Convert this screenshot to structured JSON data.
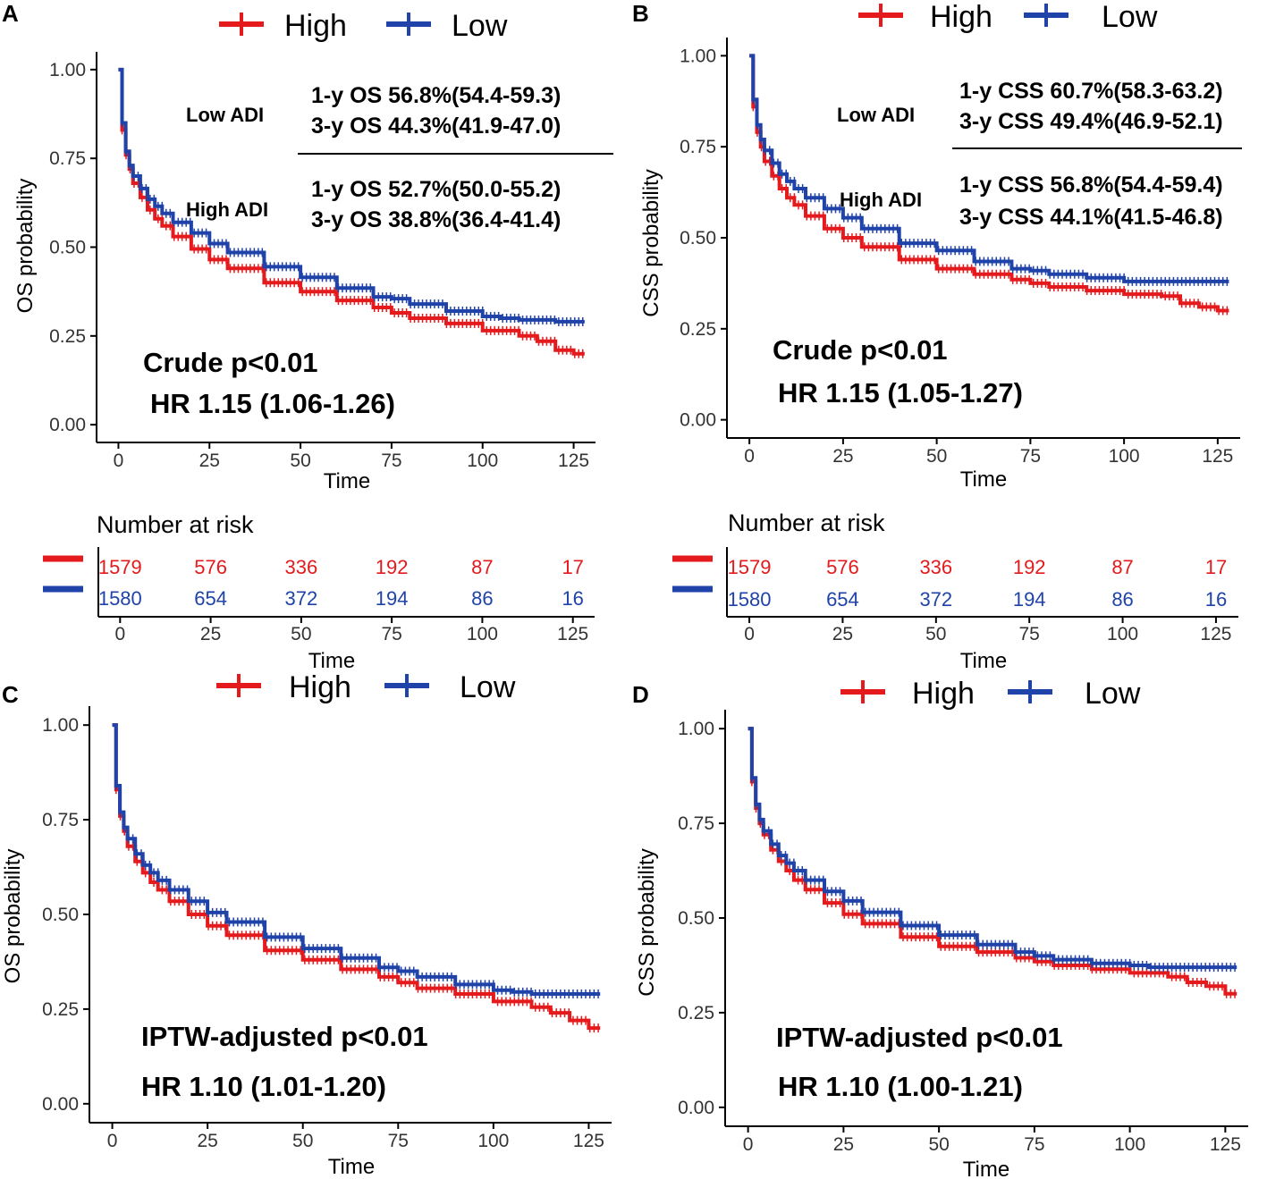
{
  "colors": {
    "high": "#e41a1c",
    "low": "#1f43a8",
    "axis": "#000000",
    "tick_label": "#333333"
  },
  "legend": {
    "high": "High",
    "low": "Low"
  },
  "panels": {
    "A": {
      "letter": "A",
      "ylabel": "OS probability",
      "xlabel": "Time",
      "xticks": [
        "0",
        "25",
        "50",
        "75",
        "100",
        "125"
      ],
      "yticks": [
        "0.00",
        "0.25",
        "0.50",
        "0.75",
        "1.00"
      ],
      "low_label": "Low  ADI",
      "high_label": "High ADI",
      "low_lines": [
        "1-y OS 56.8%(54.4-59.3)",
        "3-y OS 44.3%(41.9-47.0)"
      ],
      "high_lines": [
        "1-y OS 52.7%(50.0-55.2)",
        "3-y OS 38.8%(36.4-41.4)"
      ],
      "stat1": "Crude p<0.01",
      "stat2": "HR 1.15 (1.06-1.26)"
    },
    "B": {
      "letter": "B",
      "ylabel": "CSS probability",
      "xlabel": "Time",
      "xticks": [
        "0",
        "25",
        "50",
        "75",
        "100",
        "125"
      ],
      "yticks": [
        "0.00",
        "0.25",
        "0.50",
        "0.75",
        "1.00"
      ],
      "low_label": "Low  ADI",
      "high_label": "High ADI",
      "low_lines": [
        "1-y CSS 60.7%(58.3-63.2)",
        "3-y CSS 49.4%(46.9-52.1)"
      ],
      "high_lines": [
        "1-y CSS 56.8%(54.4-59.4)",
        "3-y CSS 44.1%(41.5-46.8)"
      ],
      "stat1": "Crude p<0.01",
      "stat2": "HR 1.15 (1.05-1.27)"
    },
    "C": {
      "letter": "C",
      "ylabel": "OS probability",
      "xlabel": "Time",
      "xticks": [
        "0",
        "25",
        "50",
        "75",
        "100",
        "125"
      ],
      "yticks": [
        "0.00",
        "0.25",
        "0.50",
        "0.75",
        "1.00"
      ],
      "stat1": "IPTW-adjusted p<0.01",
      "stat2": "HR 1.10 (1.01-1.20)"
    },
    "D": {
      "letter": "D",
      "ylabel": "CSS probability",
      "xlabel": "Time",
      "xticks": [
        "0",
        "25",
        "50",
        "75",
        "100",
        "125"
      ],
      "yticks": [
        "0.00",
        "0.25",
        "0.50",
        "0.75",
        "1.00"
      ],
      "stat1": "IPTW-adjusted p<0.01",
      "stat2": "HR 1.10 (1.00-1.21)"
    }
  },
  "risk_tables": {
    "title": "Number at risk",
    "xlabel": "Time",
    "xticks": [
      "0",
      "25",
      "50",
      "75",
      "100",
      "125"
    ],
    "high": [
      "1579",
      "576",
      "336",
      "192",
      "87",
      "17"
    ],
    "low": [
      "1580",
      "654",
      "372",
      "194",
      "86",
      "16"
    ]
  },
  "chart_data": [
    {
      "panel": "A",
      "type": "line",
      "title": "",
      "xlabel": "Time",
      "ylabel": "OS probability",
      "xlim": [
        -6,
        131
      ],
      "ylim": [
        -0.05,
        1.05
      ],
      "legend": [
        "High",
        "Low"
      ],
      "series": [
        {
          "name": "High",
          "x": [
            0,
            1,
            2,
            3,
            4,
            6,
            8,
            10,
            12,
            15,
            20,
            25,
            30,
            40,
            50,
            60,
            70,
            75,
            80,
            90,
            100,
            110,
            115,
            120,
            125,
            128
          ],
          "y": [
            1.0,
            0.83,
            0.76,
            0.72,
            0.68,
            0.64,
            0.605,
            0.58,
            0.56,
            0.53,
            0.495,
            0.465,
            0.44,
            0.4,
            0.375,
            0.35,
            0.33,
            0.315,
            0.3,
            0.285,
            0.265,
            0.25,
            0.235,
            0.21,
            0.2,
            0.2
          ]
        },
        {
          "name": "Low",
          "x": [
            0,
            1,
            2,
            3,
            4,
            6,
            8,
            10,
            12,
            15,
            20,
            25,
            30,
            40,
            50,
            60,
            70,
            75,
            80,
            90,
            100,
            105,
            110,
            120,
            125,
            128
          ],
          "y": [
            1.0,
            0.85,
            0.77,
            0.73,
            0.7,
            0.665,
            0.635,
            0.615,
            0.595,
            0.57,
            0.54,
            0.51,
            0.485,
            0.445,
            0.415,
            0.385,
            0.36,
            0.355,
            0.34,
            0.32,
            0.305,
            0.3,
            0.295,
            0.29,
            0.29,
            0.29
          ]
        }
      ]
    },
    {
      "panel": "B",
      "type": "line",
      "title": "",
      "xlabel": "Time",
      "ylabel": "CSS probability",
      "xlim": [
        -6,
        131
      ],
      "ylim": [
        -0.05,
        1.05
      ],
      "legend": [
        "High",
        "Low"
      ],
      "series": [
        {
          "name": "High",
          "x": [
            0,
            1,
            2,
            3,
            4,
            6,
            8,
            10,
            12,
            15,
            20,
            25,
            30,
            40,
            50,
            60,
            70,
            75,
            80,
            90,
            100,
            110,
            115,
            120,
            125,
            128
          ],
          "y": [
            1.0,
            0.86,
            0.79,
            0.75,
            0.71,
            0.67,
            0.635,
            0.61,
            0.59,
            0.56,
            0.525,
            0.5,
            0.475,
            0.44,
            0.415,
            0.4,
            0.385,
            0.375,
            0.365,
            0.355,
            0.345,
            0.34,
            0.32,
            0.31,
            0.3,
            0.3
          ]
        },
        {
          "name": "Low",
          "x": [
            0,
            1,
            2,
            3,
            4,
            6,
            8,
            10,
            12,
            15,
            20,
            25,
            30,
            40,
            50,
            60,
            70,
            75,
            80,
            90,
            100,
            105,
            110,
            120,
            125,
            128
          ],
          "y": [
            1.0,
            0.88,
            0.81,
            0.77,
            0.74,
            0.705,
            0.675,
            0.655,
            0.635,
            0.61,
            0.58,
            0.555,
            0.525,
            0.485,
            0.465,
            0.435,
            0.415,
            0.41,
            0.4,
            0.39,
            0.38,
            0.38,
            0.38,
            0.38,
            0.38,
            0.38
          ]
        }
      ]
    },
    {
      "panel": "C",
      "type": "line",
      "title": "",
      "xlabel": "Time",
      "ylabel": "OS probability",
      "xlim": [
        -6,
        131
      ],
      "ylim": [
        -0.05,
        1.05
      ],
      "legend": [
        "High",
        "Low"
      ],
      "series": [
        {
          "name": "High",
          "x": [
            0,
            1,
            2,
            3,
            4,
            6,
            8,
            10,
            12,
            15,
            20,
            25,
            30,
            40,
            50,
            60,
            70,
            75,
            80,
            90,
            100,
            110,
            115,
            120,
            125,
            128
          ],
          "y": [
            1.0,
            0.83,
            0.76,
            0.72,
            0.68,
            0.64,
            0.61,
            0.585,
            0.565,
            0.535,
            0.5,
            0.47,
            0.445,
            0.405,
            0.38,
            0.355,
            0.335,
            0.32,
            0.305,
            0.29,
            0.27,
            0.255,
            0.24,
            0.22,
            0.2,
            0.2
          ]
        },
        {
          "name": "Low",
          "x": [
            0,
            1,
            2,
            3,
            4,
            6,
            8,
            10,
            12,
            15,
            20,
            25,
            30,
            40,
            50,
            60,
            70,
            75,
            80,
            90,
            100,
            105,
            110,
            120,
            125,
            128
          ],
          "y": [
            1.0,
            0.84,
            0.77,
            0.73,
            0.7,
            0.66,
            0.63,
            0.61,
            0.59,
            0.565,
            0.535,
            0.505,
            0.48,
            0.44,
            0.41,
            0.385,
            0.36,
            0.35,
            0.335,
            0.315,
            0.3,
            0.295,
            0.29,
            0.29,
            0.29,
            0.29
          ]
        }
      ]
    },
    {
      "panel": "D",
      "type": "line",
      "title": "",
      "xlabel": "Time",
      "ylabel": "CSS probability",
      "xlim": [
        -6,
        131
      ],
      "ylim": [
        -0.05,
        1.05
      ],
      "legend": [
        "High",
        "Low"
      ],
      "series": [
        {
          "name": "High",
          "x": [
            0,
            1,
            2,
            3,
            4,
            6,
            8,
            10,
            12,
            15,
            20,
            25,
            30,
            40,
            50,
            60,
            70,
            75,
            80,
            90,
            100,
            110,
            115,
            120,
            125,
            128
          ],
          "y": [
            1.0,
            0.86,
            0.79,
            0.75,
            0.72,
            0.68,
            0.65,
            0.625,
            0.6,
            0.575,
            0.54,
            0.51,
            0.485,
            0.45,
            0.425,
            0.41,
            0.395,
            0.385,
            0.375,
            0.365,
            0.355,
            0.345,
            0.33,
            0.32,
            0.3,
            0.3
          ]
        },
        {
          "name": "Low",
          "x": [
            0,
            1,
            2,
            3,
            4,
            6,
            8,
            10,
            12,
            15,
            20,
            25,
            30,
            40,
            50,
            60,
            70,
            75,
            80,
            90,
            100,
            105,
            110,
            120,
            125,
            128
          ],
          "y": [
            1.0,
            0.87,
            0.8,
            0.76,
            0.73,
            0.695,
            0.665,
            0.645,
            0.625,
            0.6,
            0.57,
            0.545,
            0.515,
            0.48,
            0.455,
            0.43,
            0.41,
            0.4,
            0.39,
            0.38,
            0.375,
            0.37,
            0.37,
            0.37,
            0.37,
            0.37
          ]
        }
      ]
    }
  ]
}
